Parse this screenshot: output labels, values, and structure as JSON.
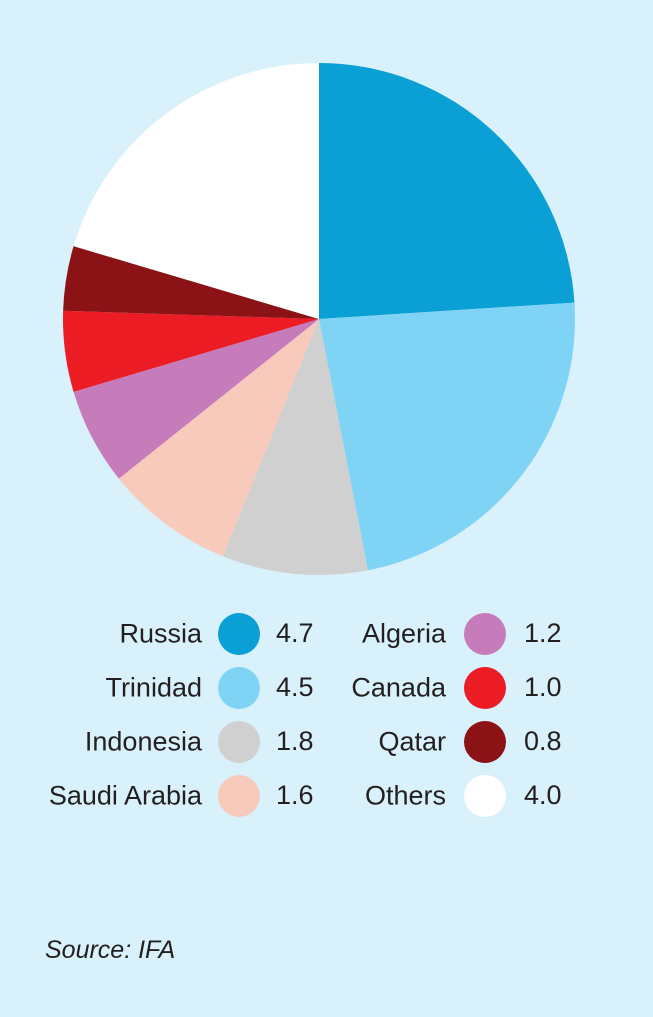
{
  "chart_data": {
    "type": "pie",
    "categories": [
      "Russia",
      "Trinidad",
      "Indonesia",
      "Saudi Arabia",
      "Algeria",
      "Canada",
      "Qatar",
      "Others"
    ],
    "values": [
      4.7,
      4.5,
      1.8,
      1.6,
      1.2,
      1.0,
      0.8,
      4.0
    ],
    "value_labels": [
      "4.7",
      "4.5",
      "1.8",
      "1.6",
      "1.2",
      "1.0",
      "0.8",
      "4.0"
    ],
    "colors": [
      "#0aa0d5",
      "#7fd4f5",
      "#d0d0d0",
      "#f8cabc",
      "#c67cbb",
      "#eb1c24",
      "#8b1316",
      "#ffffff"
    ],
    "start_angle_deg": 0,
    "direction": "clockwise",
    "legend_placement": "bottom"
  },
  "source": "Source: IFA"
}
